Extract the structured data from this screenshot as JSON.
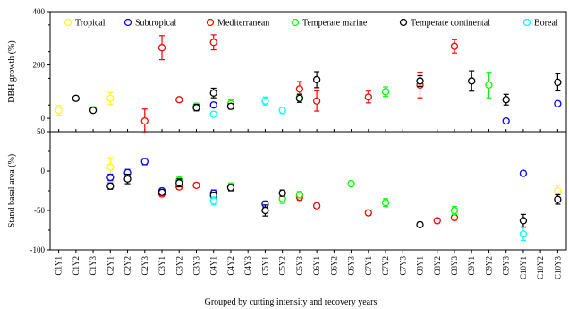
{
  "chart_data": {
    "type": "scatter",
    "xlabel": "Grouped by cutting intensity and recovery years",
    "categories": [
      "C1Y1",
      "C1Y2",
      "C1Y3",
      "C2Y1",
      "C2Y2",
      "C2Y3",
      "C3Y1",
      "C3Y2",
      "C3Y3",
      "C4Y1",
      "C4Y2",
      "C4Y3",
      "C5Y1",
      "C5Y2",
      "C5Y3",
      "C6Y1",
      "C6Y2",
      "C6Y3",
      "C7Y1",
      "C7Y2",
      "C7Y3",
      "C8Y1",
      "C8Y2",
      "C8Y3",
      "C9Y1",
      "C9Y2",
      "C9Y3",
      "C10Y1",
      "C10Y2",
      "C10Y3"
    ],
    "legend": [
      {
        "name": "Tropical",
        "color": "#ffff00"
      },
      {
        "name": "Subtropical",
        "color": "#0000ff"
      },
      {
        "name": "Mediterranean",
        "color": "#ff0000"
      },
      {
        "name": "Temperate marine",
        "color": "#00ff00"
      },
      {
        "name": "Temperate continental",
        "color": "#000000"
      },
      {
        "name": "Boreal",
        "color": "#00ffff"
      }
    ],
    "panels": [
      {
        "ylabel": "DBH growth (%)",
        "ylim": [
          -50,
          400
        ],
        "yticks": [
          "0",
          "200",
          "400"
        ],
        "ytick_values": [
          0,
          200,
          400
        ],
        "series": [
          {
            "name": "Tropical",
            "color": "#ffff00",
            "points": [
              {
                "x": "C1Y1",
                "y": 30,
                "err": 18
              },
              {
                "x": "C2Y1",
                "y": 75,
                "err": 22
              }
            ]
          },
          {
            "name": "Subtropical",
            "color": "#0000ff",
            "points": [
              {
                "x": "C4Y1",
                "y": 50,
                "err": 8
              },
              {
                "x": "C9Y3",
                "y": -10,
                "err": 5
              },
              {
                "x": "C10Y3",
                "y": 55,
                "err": 6
              }
            ]
          },
          {
            "name": "Mediterranean",
            "color": "#ff0000",
            "points": [
              {
                "x": "C2Y3",
                "y": -10,
                "err": 45
              },
              {
                "x": "C3Y1",
                "y": 265,
                "err": 45
              },
              {
                "x": "C3Y2",
                "y": 70,
                "err": 6
              },
              {
                "x": "C4Y1",
                "y": 285,
                "err": 28
              },
              {
                "x": "C5Y3",
                "y": 110,
                "err": 28
              },
              {
                "x": "C6Y1",
                "y": 65,
                "err": 38
              },
              {
                "x": "C7Y1",
                "y": 80,
                "err": 22
              },
              {
                "x": "C8Y1",
                "y": 125,
                "err": 48
              },
              {
                "x": "C8Y3",
                "y": 270,
                "err": 25
              }
            ]
          },
          {
            "name": "Temperate marine",
            "color": "#00ff00",
            "points": [
              {
                "x": "C1Y3",
                "y": 32,
                "err": 8
              },
              {
                "x": "C3Y3",
                "y": 45,
                "err": 12
              },
              {
                "x": "C4Y2",
                "y": 55,
                "err": 15
              },
              {
                "x": "C5Y3",
                "y": 80,
                "err": 12
              },
              {
                "x": "C7Y2",
                "y": 100,
                "err": 18
              },
              {
                "x": "C9Y2",
                "y": 125,
                "err": 48
              }
            ]
          },
          {
            "name": "Temperate continental",
            "color": "#000000",
            "points": [
              {
                "x": "C1Y2",
                "y": 75,
                "err": 6
              },
              {
                "x": "C1Y3",
                "y": 30,
                "err": 5
              },
              {
                "x": "C3Y3",
                "y": 40,
                "err": 12
              },
              {
                "x": "C4Y1",
                "y": 95,
                "err": 18
              },
              {
                "x": "C4Y2",
                "y": 45,
                "err": 10
              },
              {
                "x": "C5Y3",
                "y": 75,
                "err": 15
              },
              {
                "x": "C6Y1",
                "y": 145,
                "err": 30
              },
              {
                "x": "C8Y1",
                "y": 140,
                "err": 20
              },
              {
                "x": "C9Y1",
                "y": 140,
                "err": 38
              },
              {
                "x": "C9Y3",
                "y": 70,
                "err": 20
              },
              {
                "x": "C10Y3",
                "y": 135,
                "err": 32
              }
            ]
          },
          {
            "name": "Boreal",
            "color": "#00ffff",
            "points": [
              {
                "x": "C4Y1",
                "y": 15,
                "err": 8
              },
              {
                "x": "C5Y1",
                "y": 65,
                "err": 15
              },
              {
                "x": "C5Y2",
                "y": 30,
                "err": 12
              }
            ]
          }
        ]
      },
      {
        "ylabel": "Stand basal area (%)",
        "ylim": [
          -100,
          50
        ],
        "yticks": [
          "-100",
          "-50",
          "0",
          "50"
        ],
        "ytick_values": [
          -100,
          -50,
          0,
          50
        ],
        "series": [
          {
            "name": "Tropical",
            "color": "#ffff00",
            "points": [
              {
                "x": "C2Y1",
                "y": 5,
                "err": 12
              },
              {
                "x": "C10Y3",
                "y": -25,
                "err": 7
              }
            ]
          },
          {
            "name": "Subtropical",
            "color": "#0000ff",
            "points": [
              {
                "x": "C2Y1",
                "y": -8,
                "err": 4
              },
              {
                "x": "C2Y2",
                "y": -2,
                "err": 4
              },
              {
                "x": "C2Y3",
                "y": 12,
                "err": 4
              },
              {
                "x": "C3Y1",
                "y": -25,
                "err": 3
              },
              {
                "x": "C4Y1",
                "y": -28,
                "err": 4
              },
              {
                "x": "C5Y1",
                "y": -42,
                "err": 4
              },
              {
                "x": "C10Y1",
                "y": -3,
                "err": 3
              }
            ]
          },
          {
            "name": "Mediterranean",
            "color": "#ff0000",
            "points": [
              {
                "x": "C3Y1",
                "y": -29,
                "err": 3
              },
              {
                "x": "C3Y2",
                "y": -20,
                "err": 3
              },
              {
                "x": "C3Y3",
                "y": -18,
                "err": 3
              },
              {
                "x": "C5Y3",
                "y": -33,
                "err": 4
              },
              {
                "x": "C6Y1",
                "y": -44,
                "err": 3
              },
              {
                "x": "C7Y1",
                "y": -53,
                "err": 3
              },
              {
                "x": "C8Y2",
                "y": -63,
                "err": 3
              },
              {
                "x": "C8Y3",
                "y": -59,
                "err": 3
              }
            ]
          },
          {
            "name": "Temperate marine",
            "color": "#00ff00",
            "points": [
              {
                "x": "C3Y2",
                "y": -12,
                "err": 5
              },
              {
                "x": "C4Y2",
                "y": -20,
                "err": 5
              },
              {
                "x": "C5Y2",
                "y": -35,
                "err": 6
              },
              {
                "x": "C5Y3",
                "y": -30,
                "err": 4
              },
              {
                "x": "C6Y3",
                "y": -16,
                "err": 3
              },
              {
                "x": "C7Y2",
                "y": -40,
                "err": 5
              },
              {
                "x": "C8Y3",
                "y": -50,
                "err": 5
              }
            ]
          },
          {
            "name": "Temperate continental",
            "color": "#000000",
            "points": [
              {
                "x": "C2Y1",
                "y": -19,
                "err": 4
              },
              {
                "x": "C2Y2",
                "y": -10,
                "err": 6
              },
              {
                "x": "C3Y1",
                "y": -27,
                "err": 3
              },
              {
                "x": "C3Y2",
                "y": -15,
                "err": 5
              },
              {
                "x": "C4Y1",
                "y": -31,
                "err": 4
              },
              {
                "x": "C4Y2",
                "y": -21,
                "err": 4
              },
              {
                "x": "C5Y1",
                "y": -50,
                "err": 7
              },
              {
                "x": "C5Y2",
                "y": -28,
                "err": 4
              },
              {
                "x": "C8Y1",
                "y": -68,
                "err": 3
              },
              {
                "x": "C10Y1",
                "y": -63,
                "err": 8
              },
              {
                "x": "C10Y3",
                "y": -36,
                "err": 6
              }
            ]
          },
          {
            "name": "Boreal",
            "color": "#00ffff",
            "points": [
              {
                "x": "C4Y1",
                "y": -38,
                "err": 5
              },
              {
                "x": "C10Y1",
                "y": -80,
                "err": 8
              }
            ]
          }
        ]
      }
    ]
  }
}
